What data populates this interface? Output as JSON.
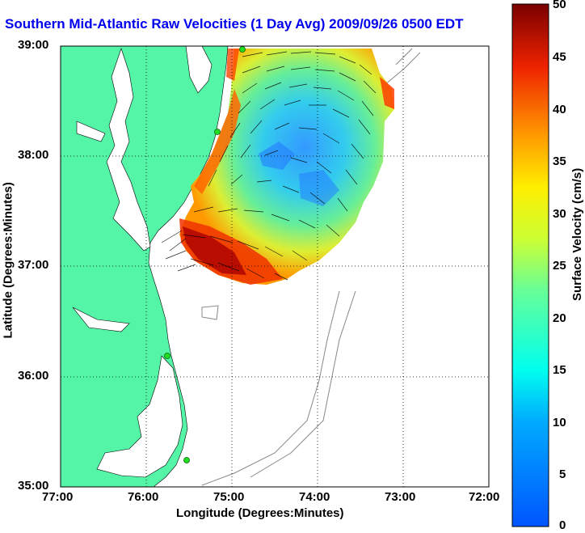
{
  "title": "Southern Mid-Atlantic Raw Velocities (1 Day Avg) 2009/09/26 0500 EDT",
  "axes": {
    "xlabel": "Longitude (Degrees:Minutes)",
    "ylabel": "Latitude (Degrees:Minutes)",
    "xticks": [
      "77:00",
      "76:00",
      "75:00",
      "74:00",
      "73:00",
      "72:00"
    ],
    "yticks": [
      "39:00",
      "38:00",
      "37:00",
      "36:00",
      "35:00"
    ]
  },
  "colorbar": {
    "label": "Surface Velocity (cm/s)",
    "ticks": [
      "50",
      "45",
      "40",
      "35",
      "30",
      "25",
      "20",
      "15",
      "10",
      "5",
      "0"
    ],
    "min": 0,
    "max": 50
  },
  "colors": {
    "land": "#55f5a8",
    "title": "#0000ee",
    "station": "#22dd22"
  }
}
